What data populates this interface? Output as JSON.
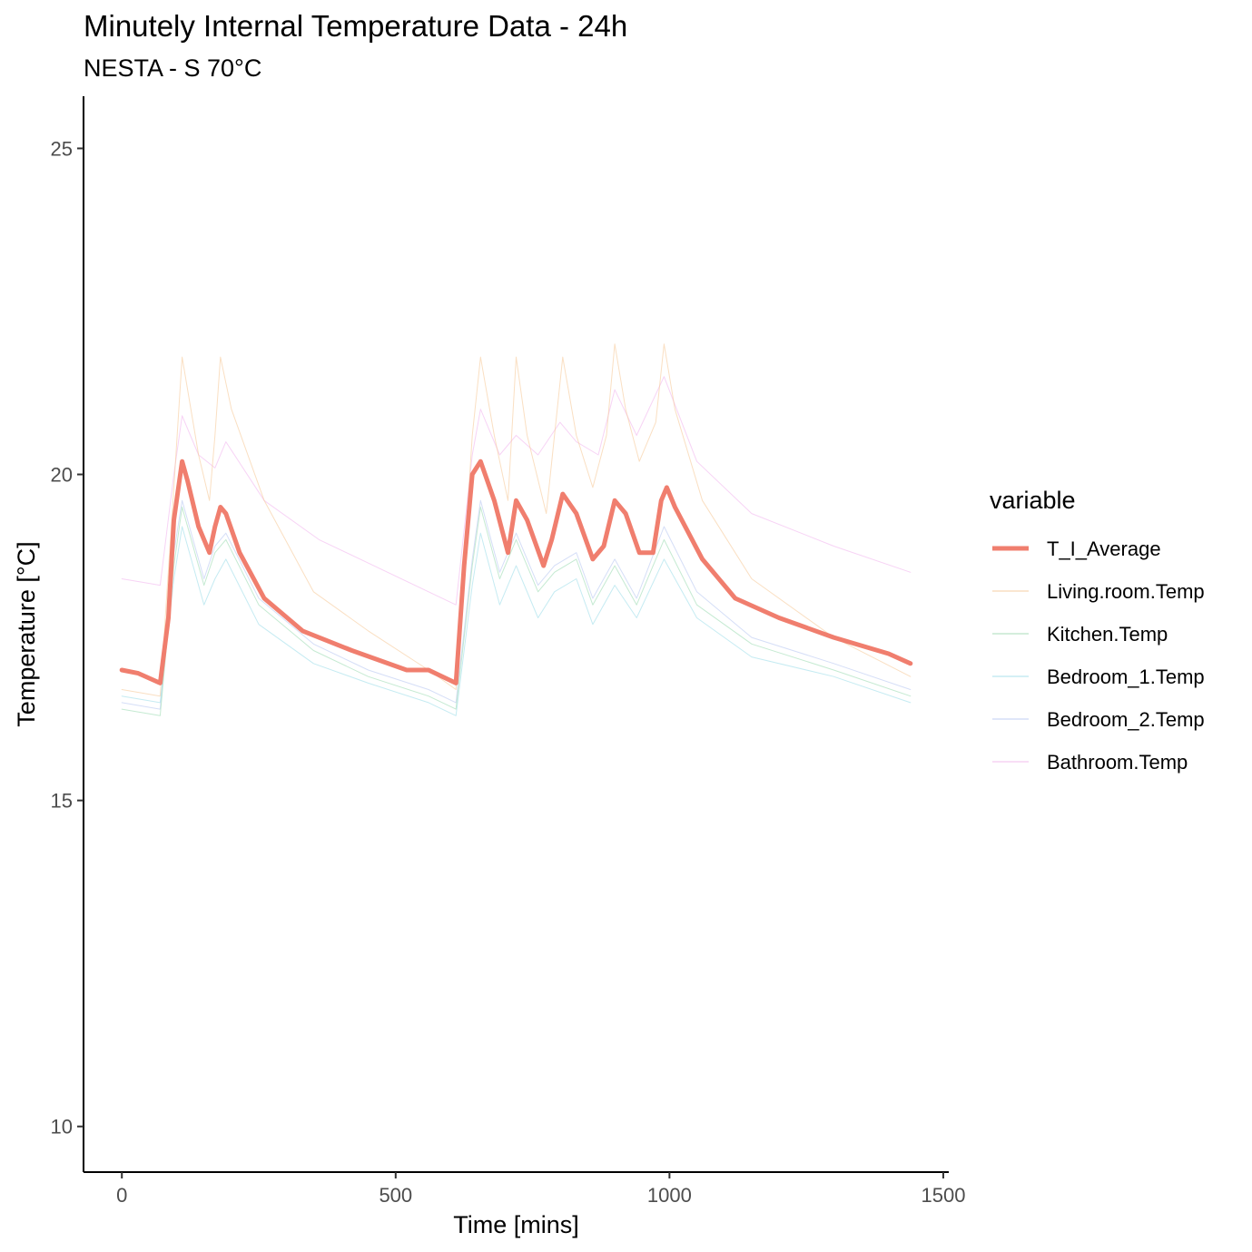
{
  "chart_data": {
    "type": "line",
    "title": "Minutely Internal Temperature Data - 24h",
    "subtitle": "NESTA - S 70°C",
    "xlabel": "Time [mins]",
    "ylabel": "Temperature [°C]",
    "xlim": [
      -70,
      1510
    ],
    "ylim": [
      9.3,
      25.8
    ],
    "x_ticks": [
      0,
      500,
      1000,
      1500
    ],
    "y_ticks": [
      10,
      15,
      20,
      25
    ],
    "grid": false,
    "legend": {
      "title": "variable",
      "position": "right"
    },
    "series": [
      {
        "name": "T_I_Average",
        "color": "#F07E6E",
        "width": 5,
        "x": [
          0,
          30,
          70,
          85,
          95,
          110,
          120,
          140,
          160,
          170,
          180,
          190,
          215,
          260,
          330,
          420,
          520,
          560,
          610,
          625,
          640,
          655,
          680,
          705,
          720,
          740,
          770,
          785,
          805,
          830,
          860,
          880,
          900,
          920,
          945,
          970,
          985,
          995,
          1010,
          1060,
          1120,
          1200,
          1300,
          1400,
          1440
        ],
        "y": [
          17.0,
          16.95,
          16.8,
          17.8,
          19.3,
          20.2,
          19.9,
          19.2,
          18.8,
          19.2,
          19.5,
          19.4,
          18.8,
          18.1,
          17.6,
          17.3,
          17.0,
          17.0,
          16.8,
          18.6,
          20.0,
          20.2,
          19.6,
          18.8,
          19.6,
          19.3,
          18.6,
          19.0,
          19.7,
          19.4,
          18.7,
          18.9,
          19.6,
          19.4,
          18.8,
          18.8,
          19.6,
          19.8,
          19.5,
          18.7,
          18.1,
          17.8,
          17.5,
          17.25,
          17.1
        ]
      },
      {
        "name": "Living.room.Temp",
        "color": "#F6C99A",
        "width": 1,
        "x": [
          0,
          70,
          95,
          110,
          140,
          160,
          170,
          180,
          200,
          260,
          350,
          450,
          560,
          610,
          640,
          655,
          680,
          705,
          720,
          740,
          775,
          805,
          830,
          860,
          885,
          900,
          920,
          945,
          975,
          990,
          1010,
          1060,
          1150,
          1300,
          1440
        ],
        "y": [
          16.7,
          16.6,
          19.8,
          21.8,
          20.3,
          19.6,
          20.6,
          21.8,
          21.0,
          19.6,
          18.2,
          17.6,
          17.0,
          16.7,
          20.6,
          21.8,
          20.6,
          19.6,
          21.8,
          20.6,
          19.4,
          21.8,
          20.6,
          19.8,
          20.6,
          22.0,
          21.0,
          20.2,
          20.8,
          22.0,
          21.0,
          19.6,
          18.4,
          17.5,
          16.9
        ]
      },
      {
        "name": "Kitchen.Temp",
        "color": "#9FDCB4",
        "width": 1,
        "x": [
          0,
          70,
          95,
          110,
          150,
          170,
          190,
          250,
          350,
          450,
          560,
          610,
          640,
          655,
          690,
          720,
          760,
          790,
          830,
          860,
          900,
          940,
          990,
          1050,
          1150,
          1300,
          1440
        ],
        "y": [
          16.4,
          16.3,
          18.6,
          19.5,
          18.3,
          18.8,
          19.0,
          18.0,
          17.3,
          16.9,
          16.6,
          16.4,
          18.6,
          19.5,
          18.4,
          19.0,
          18.2,
          18.5,
          18.7,
          18.0,
          18.6,
          18.0,
          19.0,
          18.0,
          17.4,
          17.0,
          16.6
        ]
      },
      {
        "name": "Bedroom_1.Temp",
        "color": "#9FDDEA",
        "width": 1,
        "x": [
          0,
          70,
          95,
          110,
          150,
          170,
          190,
          250,
          350,
          450,
          560,
          610,
          640,
          655,
          690,
          720,
          760,
          790,
          830,
          860,
          900,
          940,
          990,
          1050,
          1150,
          1300,
          1440
        ],
        "y": [
          16.6,
          16.5,
          18.4,
          19.2,
          18.0,
          18.4,
          18.7,
          17.7,
          17.1,
          16.8,
          16.5,
          16.3,
          18.3,
          19.1,
          18.0,
          18.6,
          17.8,
          18.2,
          18.4,
          17.7,
          18.3,
          17.8,
          18.7,
          17.8,
          17.2,
          16.9,
          16.5
        ]
      },
      {
        "name": "Bedroom_2.Temp",
        "color": "#B9C8F2",
        "width": 1,
        "x": [
          0,
          70,
          95,
          110,
          150,
          170,
          190,
          250,
          350,
          450,
          560,
          610,
          640,
          655,
          690,
          720,
          760,
          790,
          830,
          860,
          900,
          940,
          990,
          1050,
          1150,
          1300,
          1440
        ],
        "y": [
          16.5,
          16.4,
          18.8,
          19.6,
          18.4,
          18.9,
          19.1,
          18.1,
          17.4,
          17.0,
          16.7,
          16.5,
          18.7,
          19.6,
          18.5,
          19.1,
          18.3,
          18.6,
          18.8,
          18.1,
          18.7,
          18.1,
          19.2,
          18.2,
          17.5,
          17.1,
          16.7
        ]
      },
      {
        "name": "Bathroom.Temp",
        "color": "#F2B6EE",
        "width": 1,
        "x": [
          0,
          70,
          95,
          110,
          140,
          170,
          190,
          260,
          360,
          460,
          560,
          610,
          640,
          655,
          690,
          720,
          760,
          800,
          830,
          870,
          900,
          940,
          990,
          1050,
          1150,
          1300,
          1440
        ],
        "y": [
          18.4,
          18.3,
          20.0,
          20.9,
          20.3,
          20.1,
          20.5,
          19.6,
          19.0,
          18.6,
          18.2,
          18.0,
          20.3,
          21.0,
          20.3,
          20.6,
          20.3,
          20.8,
          20.5,
          20.3,
          21.3,
          20.6,
          21.5,
          20.2,
          19.4,
          18.9,
          18.5
        ]
      }
    ]
  }
}
